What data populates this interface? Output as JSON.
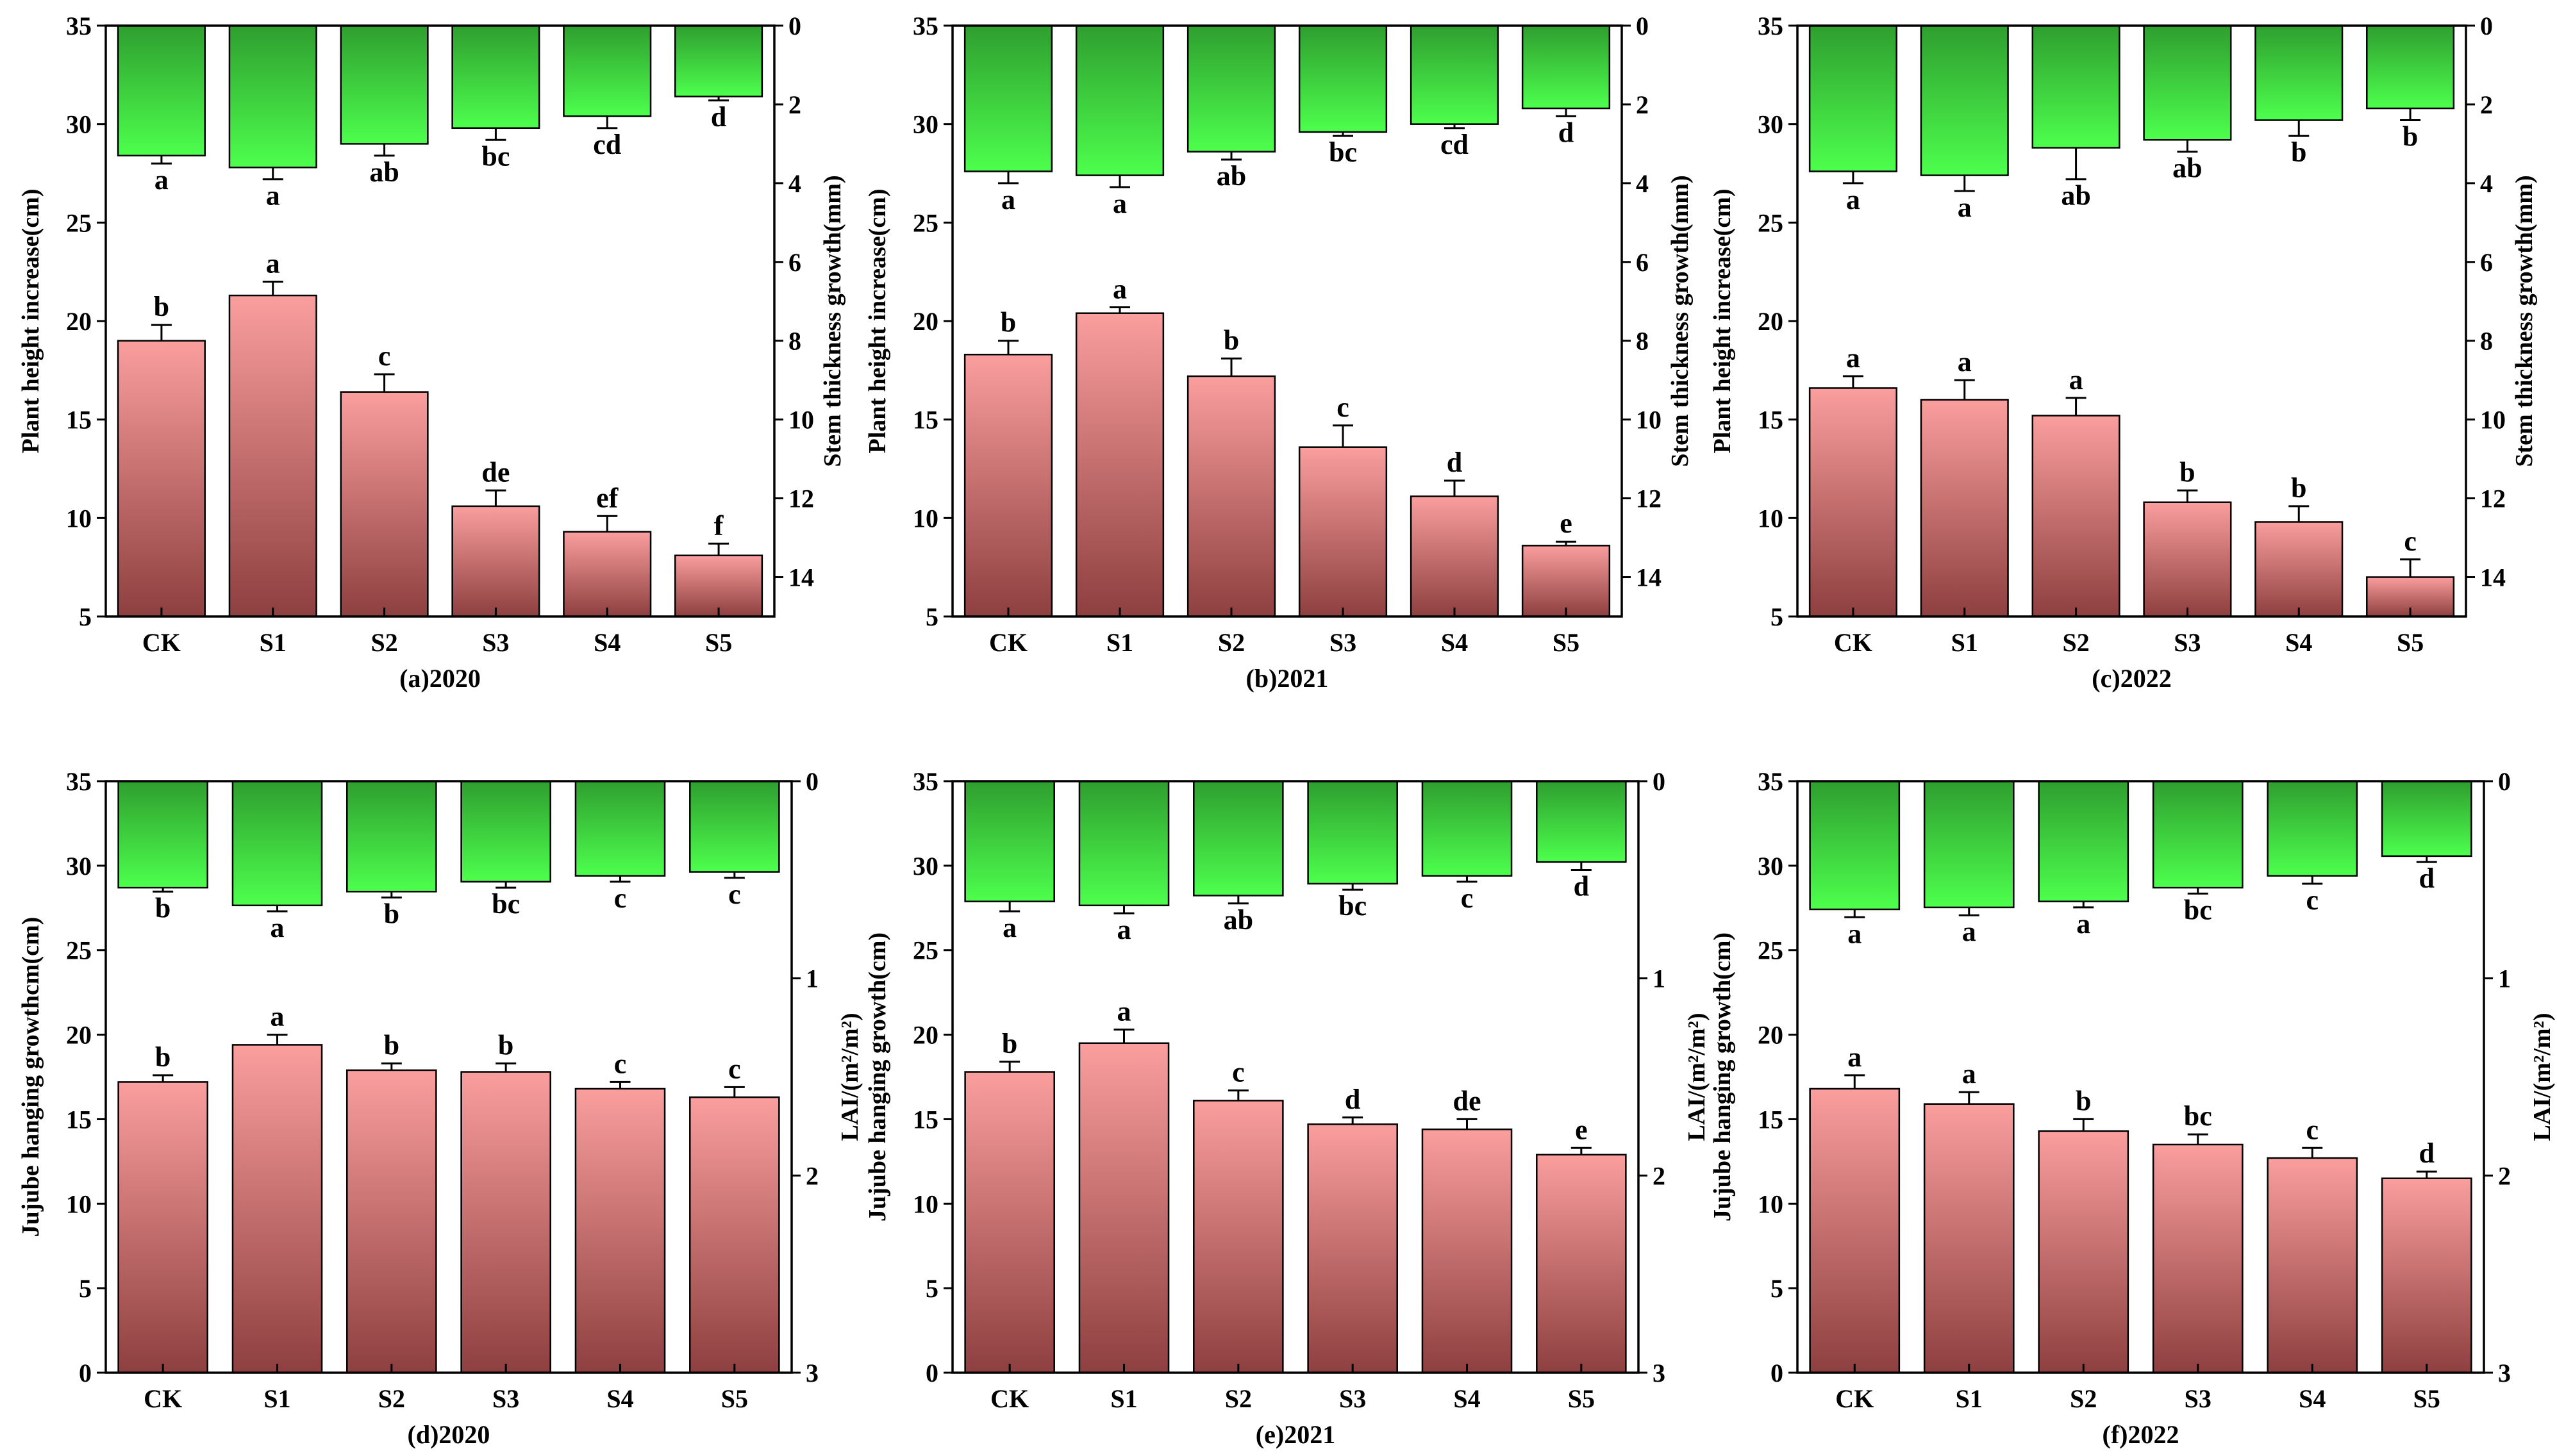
{
  "figure": {
    "background": "#ffffff"
  },
  "colors": {
    "red_top": "#fa9e9e",
    "red_bottom": "#8e3f3f",
    "green_top": "#2f9e2f",
    "green_bottom": "#4dff4d"
  },
  "chart_data": [
    {
      "id": "a",
      "type": "bar",
      "caption": "(a)2020",
      "categories": [
        "CK",
        "S1",
        "S2",
        "S3",
        "S4",
        "S5"
      ],
      "left_axis": {
        "label": "Plant height increase(cm)",
        "range": [
          5,
          35
        ],
        "ticks": [
          5,
          10,
          15,
          20,
          25,
          30,
          35
        ]
      },
      "right_axis": {
        "label": "Stem thickness growth(mm)",
        "range": [
          0,
          15
        ],
        "inverted": true,
        "ticks": [
          0,
          2,
          4,
          6,
          8,
          10,
          12,
          14
        ]
      },
      "bottom_series": {
        "name": "Plant height increase",
        "values": [
          19.0,
          21.3,
          16.4,
          10.6,
          9.3,
          8.1
        ],
        "errors": [
          0.8,
          0.7,
          0.9,
          0.8,
          0.8,
          0.6
        ],
        "letters": [
          "b",
          "a",
          "c",
          "de",
          "ef",
          "f"
        ]
      },
      "top_series": {
        "name": "Stem thickness growth",
        "values": [
          3.3,
          3.6,
          3.0,
          2.6,
          2.3,
          1.8
        ],
        "errors": [
          0.2,
          0.3,
          0.3,
          0.3,
          0.3,
          0.1
        ],
        "letters": [
          "a",
          "a",
          "ab",
          "bc",
          "cd",
          "d"
        ]
      }
    },
    {
      "id": "b",
      "type": "bar",
      "caption": "(b)2021",
      "categories": [
        "CK",
        "S1",
        "S2",
        "S3",
        "S4",
        "S5"
      ],
      "left_axis": {
        "label": "Plant height increase(cm)",
        "range": [
          5,
          35
        ],
        "ticks": [
          5,
          10,
          15,
          20,
          25,
          30,
          35
        ]
      },
      "right_axis": {
        "label": "Stem thickness growth(mm)",
        "range": [
          0,
          15
        ],
        "inverted": true,
        "ticks": [
          0,
          2,
          4,
          6,
          8,
          10,
          12,
          14
        ]
      },
      "bottom_series": {
        "name": "Plant height increase",
        "values": [
          18.3,
          20.4,
          17.2,
          13.6,
          11.1,
          8.6
        ],
        "errors": [
          0.7,
          0.3,
          0.9,
          1.1,
          0.8,
          0.2
        ],
        "letters": [
          "b",
          "a",
          "b",
          "c",
          "d",
          "e"
        ]
      },
      "top_series": {
        "name": "Stem thickness growth",
        "values": [
          3.7,
          3.8,
          3.2,
          2.7,
          2.5,
          2.1
        ],
        "errors": [
          0.3,
          0.3,
          0.2,
          0.1,
          0.1,
          0.2
        ],
        "letters": [
          "a",
          "a",
          "ab",
          "bc",
          "cd",
          "d"
        ]
      }
    },
    {
      "id": "c",
      "type": "bar",
      "caption": "(c)2022",
      "categories": [
        "CK",
        "S1",
        "S2",
        "S3",
        "S4",
        "S5"
      ],
      "left_axis": {
        "label": "Plant height increase(cm)",
        "range": [
          5,
          35
        ],
        "ticks": [
          5,
          10,
          15,
          20,
          25,
          30,
          35
        ]
      },
      "right_axis": {
        "label": "Stem thickness growth(mm)",
        "range": [
          0,
          15
        ],
        "inverted": true,
        "ticks": [
          0,
          2,
          4,
          6,
          8,
          10,
          12,
          14
        ]
      },
      "bottom_series": {
        "name": "Plant height increase",
        "values": [
          16.6,
          16.0,
          15.2,
          10.8,
          9.8,
          7.0
        ],
        "errors": [
          0.6,
          1.0,
          0.9,
          0.6,
          0.8,
          0.9
        ],
        "letters": [
          "a",
          "a",
          "a",
          "b",
          "b",
          "c"
        ]
      },
      "top_series": {
        "name": "Stem thickness growth",
        "values": [
          3.7,
          3.8,
          3.1,
          2.9,
          2.4,
          2.1
        ],
        "errors": [
          0.3,
          0.4,
          0.8,
          0.3,
          0.4,
          0.3
        ],
        "letters": [
          "a",
          "a",
          "ab",
          "ab",
          "b",
          "b"
        ]
      }
    },
    {
      "id": "d",
      "type": "bar",
      "caption": "(d)2020",
      "categories": [
        "CK",
        "S1",
        "S2",
        "S3",
        "S4",
        "S5"
      ],
      "left_axis": {
        "label": "Jujube hanging growthcm(cm)",
        "range": [
          0,
          35
        ],
        "ticks": [
          0,
          5,
          10,
          15,
          20,
          25,
          30,
          35
        ]
      },
      "right_axis": {
        "label": "LAI/(m²/m²)",
        "range": [
          0,
          3
        ],
        "inverted": true,
        "ticks": [
          0,
          1,
          2,
          3
        ]
      },
      "bottom_series": {
        "name": "Jujube hanging growth",
        "values": [
          17.2,
          19.4,
          17.9,
          17.8,
          16.8,
          16.3
        ],
        "errors": [
          0.4,
          0.6,
          0.4,
          0.5,
          0.4,
          0.6
        ],
        "letters": [
          "b",
          "a",
          "b",
          "b",
          "c",
          "c"
        ]
      },
      "top_series": {
        "name": "LAI",
        "values": [
          0.54,
          0.63,
          0.56,
          0.51,
          0.48,
          0.46
        ],
        "errors": [
          0.02,
          0.03,
          0.03,
          0.03,
          0.03,
          0.03
        ],
        "letters": [
          "b",
          "a",
          "b",
          "bc",
          "c",
          "c"
        ]
      }
    },
    {
      "id": "e",
      "type": "bar",
      "caption": "(e)2021",
      "categories": [
        "CK",
        "S1",
        "S2",
        "S3",
        "S4",
        "S5"
      ],
      "left_axis": {
        "label": "Jujube hanging growth(cm)",
        "range": [
          0,
          35
        ],
        "ticks": [
          0,
          5,
          10,
          15,
          20,
          25,
          30,
          35
        ]
      },
      "right_axis": {
        "label": "LAI/(m²/m²)",
        "range": [
          0,
          3
        ],
        "inverted": true,
        "ticks": [
          0,
          1,
          2,
          3
        ]
      },
      "bottom_series": {
        "name": "Jujube hanging growth",
        "values": [
          17.8,
          19.5,
          16.1,
          14.7,
          14.4,
          12.9
        ],
        "errors": [
          0.6,
          0.8,
          0.6,
          0.4,
          0.6,
          0.4
        ],
        "letters": [
          "b",
          "a",
          "c",
          "d",
          "de",
          "e"
        ]
      },
      "top_series": {
        "name": "LAI",
        "values": [
          0.61,
          0.63,
          0.58,
          0.52,
          0.48,
          0.41
        ],
        "errors": [
          0.05,
          0.04,
          0.04,
          0.03,
          0.03,
          0.04
        ],
        "letters": [
          "a",
          "a",
          "ab",
          "bc",
          "c",
          "d"
        ]
      }
    },
    {
      "id": "f",
      "type": "bar",
      "caption": "(f)2022",
      "categories": [
        "CK",
        "S1",
        "S2",
        "S3",
        "S4",
        "S5"
      ],
      "left_axis": {
        "label": "Jujube hanging growth(cm)",
        "range": [
          0,
          35
        ],
        "ticks": [
          0,
          5,
          10,
          15,
          20,
          25,
          30,
          35
        ]
      },
      "right_axis": {
        "label": "LAI/(m²/m²)",
        "range": [
          0,
          3
        ],
        "inverted": true,
        "ticks": [
          0,
          1,
          2,
          3
        ]
      },
      "bottom_series": {
        "name": "Jujube hanging growth",
        "values": [
          16.8,
          15.9,
          14.3,
          13.5,
          12.7,
          11.5
        ],
        "errors": [
          0.8,
          0.7,
          0.7,
          0.6,
          0.6,
          0.4
        ],
        "letters": [
          "a",
          "a",
          "b",
          "bc",
          "c",
          "d"
        ]
      },
      "top_series": {
        "name": "LAI",
        "values": [
          0.65,
          0.64,
          0.61,
          0.54,
          0.48,
          0.38
        ],
        "errors": [
          0.04,
          0.04,
          0.03,
          0.03,
          0.04,
          0.03
        ],
        "letters": [
          "a",
          "a",
          "a",
          "bc",
          "c",
          "d"
        ]
      }
    }
  ]
}
